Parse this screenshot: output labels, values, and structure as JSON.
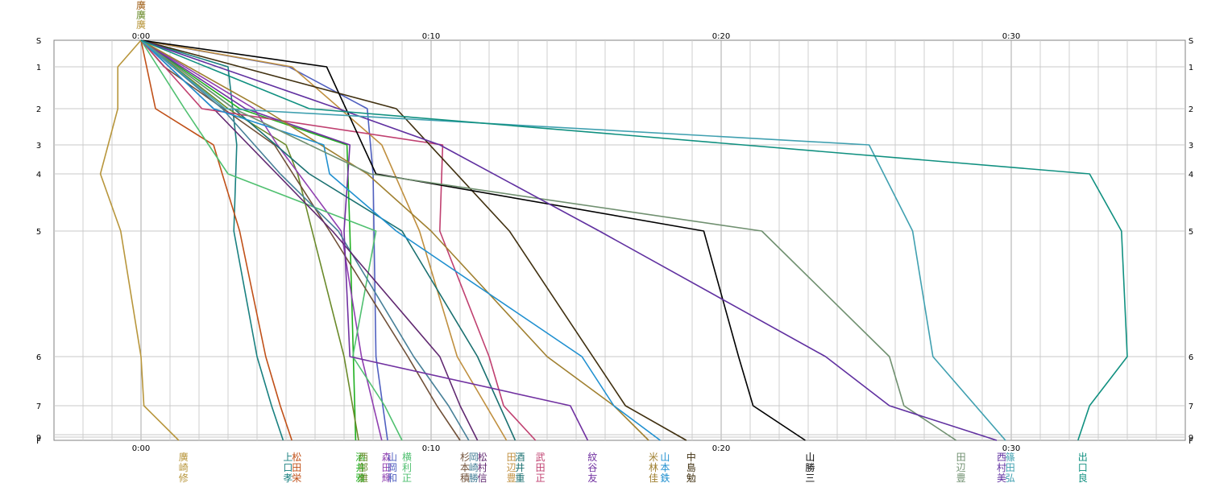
{
  "chart_data": {
    "type": "line",
    "x_axis": {
      "ticks": [
        "0:00",
        "0:10",
        "0:20",
        "0:30"
      ],
      "tick_minutes": [
        0,
        10,
        20,
        30
      ],
      "range_minutes": [
        -3.5,
        35.5
      ],
      "minor_grid_minutes": 1
    },
    "y_axis": {
      "ticks": [
        "S",
        "1",
        "2",
        "3",
        "4",
        "5",
        "6",
        "7",
        "8",
        "9",
        "F"
      ],
      "scale": "variable",
      "range": [
        "S",
        "F"
      ]
    },
    "grid": true,
    "top_names": [
      "廣",
      "廣",
      "廣"
    ],
    "series": [
      {
        "id": "s1",
        "name_parts": [
          "廣",
          "崎",
          "修"
        ],
        "color": "#b8963c",
        "finish_minutes": 1.3,
        "points": [
          [
            0,
            "S"
          ],
          [
            -0.8,
            "1"
          ],
          [
            -0.8,
            "2"
          ],
          [
            -1.4,
            "4"
          ],
          [
            -0.7,
            "5"
          ],
          [
            0,
            "6"
          ],
          [
            0.1,
            "7"
          ],
          [
            1.3,
            "F"
          ]
        ]
      },
      {
        "id": "s2",
        "name_parts": [
          "上",
          "口",
          "孝"
        ],
        "color": "#1a8080",
        "finish_minutes": 4.9,
        "points": [
          [
            0,
            "S"
          ],
          [
            3,
            "1"
          ],
          [
            3.3,
            "3"
          ],
          [
            3.2,
            "5"
          ],
          [
            4,
            "6"
          ],
          [
            4.5,
            "7"
          ],
          [
            4.9,
            "F"
          ]
        ]
      },
      {
        "id": "s3",
        "name_parts": [
          "松",
          "田",
          "栄"
        ],
        "color": "#c05018",
        "finish_minutes": 5.2,
        "points": [
          [
            0,
            "S"
          ],
          [
            0.5,
            "2"
          ],
          [
            2.5,
            "3"
          ],
          [
            2.8,
            "4"
          ],
          [
            3.4,
            "5"
          ],
          [
            4.3,
            "6"
          ],
          [
            4.8,
            "7"
          ],
          [
            5.2,
            "F"
          ]
        ]
      },
      {
        "id": "s4",
        "name_parts": [
          "酒",
          "井",
          "雅"
        ],
        "color": "#20b020",
        "finish_minutes": 7.4,
        "points": [
          [
            0,
            "S"
          ],
          [
            3.4,
            "2"
          ],
          [
            7.1,
            "3"
          ],
          [
            7.2,
            "5"
          ],
          [
            7.4,
            "F"
          ]
        ]
      },
      {
        "id": "s5",
        "name_parts": [
          "西",
          "部",
          "雅"
        ],
        "color": "#6a8a2a",
        "finish_minutes": 7.5,
        "points": [
          [
            0,
            "S"
          ],
          [
            3.0,
            "2"
          ],
          [
            5.0,
            "3"
          ],
          [
            5.4,
            "4"
          ],
          [
            7.0,
            "6"
          ],
          [
            7.5,
            "F"
          ]
        ]
      },
      {
        "id": "s6",
        "name_parts": [
          "森",
          "田",
          "輝"
        ],
        "color": "#9040b0",
        "finish_minutes": 8.3,
        "points": [
          [
            0,
            "S"
          ],
          [
            3.9,
            "2"
          ],
          [
            4.7,
            "3"
          ],
          [
            6.9,
            "5"
          ],
          [
            7.6,
            "6"
          ],
          [
            8.3,
            "F"
          ]
        ]
      },
      {
        "id": "s7",
        "name_parts": [
          "山",
          "岡",
          "和"
        ],
        "color": "#5060c0",
        "finish_minutes": 8.5,
        "points": [
          [
            0,
            "S"
          ],
          [
            5.1,
            "1"
          ],
          [
            7.8,
            "2"
          ],
          [
            8.0,
            "4"
          ],
          [
            8.1,
            "6"
          ],
          [
            8.5,
            "F"
          ]
        ]
      },
      {
        "id": "s8",
        "name_parts": [
          "横",
          "利",
          "正"
        ],
        "color": "#50c070",
        "finish_minutes": 9.0,
        "points": [
          [
            0,
            "S"
          ],
          [
            1.5,
            "2"
          ],
          [
            3.0,
            "4"
          ],
          [
            8.1,
            "5"
          ],
          [
            7.3,
            "6"
          ],
          [
            8.4,
            "7"
          ],
          [
            9.0,
            "F"
          ]
        ]
      },
      {
        "id": "s9",
        "name_parts": [
          "杉",
          "本",
          "積"
        ],
        "color": "#705038",
        "finish_minutes": 11.0,
        "points": [
          [
            0,
            "S"
          ],
          [
            0.8,
            "1"
          ],
          [
            4.6,
            "3"
          ],
          [
            6.5,
            "5"
          ],
          [
            9.2,
            "6"
          ],
          [
            10.2,
            "7"
          ],
          [
            11.0,
            "F"
          ]
        ]
      },
      {
        "id": "s10",
        "name_parts": [
          "岡",
          "崎",
          "勝"
        ],
        "color": "#488098",
        "finish_minutes": 11.3,
        "points": [
          [
            0,
            "S"
          ],
          [
            2.8,
            "2"
          ],
          [
            4.8,
            "4"
          ],
          [
            6.8,
            "5"
          ],
          [
            9.4,
            "6"
          ],
          [
            10.6,
            "7"
          ],
          [
            11.3,
            "F"
          ]
        ]
      },
      {
        "id": "s11",
        "name_parts": [
          "松",
          "村",
          "信"
        ],
        "color": "#602870",
        "finish_minutes": 11.6,
        "points": [
          [
            0,
            "S"
          ],
          [
            2.5,
            "2"
          ],
          [
            6.6,
            "5"
          ],
          [
            10.3,
            "6"
          ],
          [
            11.0,
            "7"
          ],
          [
            11.6,
            "F"
          ]
        ]
      },
      {
        "id": "s12",
        "name_parts": [
          "田",
          "辺",
          "豊"
        ],
        "color": "#c09040",
        "finish_minutes": 12.6,
        "points": [
          [
            0,
            "S"
          ],
          [
            5.2,
            "1"
          ],
          [
            8.3,
            "3"
          ],
          [
            9.6,
            "5"
          ],
          [
            10.9,
            "6"
          ],
          [
            12.6,
            "F"
          ]
        ]
      },
      {
        "id": "s13",
        "name_parts": [
          "酒",
          "井",
          "重"
        ],
        "color": "#1a7070",
        "finish_minutes": 12.9,
        "points": [
          [
            0,
            "S"
          ],
          [
            3.2,
            "2"
          ],
          [
            5.8,
            "4"
          ],
          [
            9.0,
            "5"
          ],
          [
            11.6,
            "6"
          ],
          [
            12.9,
            "F"
          ]
        ]
      },
      {
        "id": "s14",
        "name_parts": [
          "武",
          "田",
          "正"
        ],
        "color": "#c04070",
        "finish_minutes": 13.6,
        "points": [
          [
            0,
            "S"
          ],
          [
            2.1,
            "2"
          ],
          [
            10.4,
            "3"
          ],
          [
            10.3,
            "5"
          ],
          [
            12.0,
            "6"
          ],
          [
            12.5,
            "7"
          ],
          [
            13.6,
            "F"
          ]
        ]
      },
      {
        "id": "s15",
        "name_parts": [
          "紋",
          "谷",
          "友"
        ],
        "color": "#7030a0",
        "finish_minutes": 15.4,
        "points": [
          [
            0,
            "S"
          ],
          [
            3.6,
            "2"
          ],
          [
            7.2,
            "3"
          ],
          [
            7.0,
            "5"
          ],
          [
            7.2,
            "6"
          ],
          [
            14.8,
            "7"
          ],
          [
            15.4,
            "F"
          ]
        ]
      },
      {
        "id": "s16",
        "name_parts": [
          "米",
          "林",
          "佳"
        ],
        "color": "#a08030",
        "finish_minutes": 17.5,
        "points": [
          [
            0,
            "S"
          ],
          [
            4.2,
            "2"
          ],
          [
            7.8,
            "4"
          ],
          [
            10.0,
            "5"
          ],
          [
            14.0,
            "6"
          ],
          [
            16.3,
            "7"
          ],
          [
            17.5,
            "F"
          ]
        ]
      },
      {
        "id": "s17",
        "name_parts": [
          "山",
          "本",
          "鉄"
        ],
        "color": "#2090d0",
        "finish_minutes": 17.9,
        "points": [
          [
            0,
            "S"
          ],
          [
            2.5,
            "2"
          ],
          [
            6.3,
            "3"
          ],
          [
            6.5,
            "4"
          ],
          [
            8.8,
            "5"
          ],
          [
            15.2,
            "6"
          ],
          [
            16.3,
            "7"
          ],
          [
            17.9,
            "F"
          ]
        ]
      },
      {
        "id": "s18",
        "name_parts": [
          "中",
          "島",
          "勉"
        ],
        "color": "#403010",
        "finish_minutes": 18.8,
        "points": [
          [
            0,
            "S"
          ],
          [
            8.8,
            "2"
          ],
          [
            12.7,
            "5"
          ],
          [
            16.7,
            "7"
          ],
          [
            18.8,
            "F"
          ]
        ]
      },
      {
        "id": "s19",
        "name_parts": [
          "山",
          "勝",
          "三"
        ],
        "color": "#000000",
        "finish_minutes": 22.9,
        "points": [
          [
            0,
            "S"
          ],
          [
            6.4,
            "1"
          ],
          [
            8.1,
            "4"
          ],
          [
            19.4,
            "5"
          ],
          [
            20.6,
            "6"
          ],
          [
            21.1,
            "7"
          ],
          [
            22.9,
            "F"
          ]
        ]
      },
      {
        "id": "s20",
        "name_parts": [
          "田",
          "辺",
          "豊"
        ],
        "color": "#709070",
        "finish_minutes": 28.1,
        "points": [
          [
            0,
            "S"
          ],
          [
            3.2,
            "2"
          ],
          [
            7.9,
            "4"
          ],
          [
            21.4,
            "5"
          ],
          [
            25.8,
            "6"
          ],
          [
            26.3,
            "7"
          ],
          [
            28.1,
            "F"
          ]
        ]
      },
      {
        "id": "s21",
        "name_parts": [
          "西",
          "村",
          "美"
        ],
        "color": "#6030a0",
        "finish_minutes": 29.5,
        "points": [
          [
            0,
            "S"
          ],
          [
            6.8,
            "2"
          ],
          [
            10.3,
            "3"
          ],
          [
            15.8,
            "5"
          ],
          [
            23.6,
            "6"
          ],
          [
            25.8,
            "7"
          ],
          [
            29.5,
            "F"
          ]
        ]
      },
      {
        "id": "s22",
        "name_parts": [
          "篠",
          "田",
          "弘"
        ],
        "color": "#40a0b0",
        "finish_minutes": 29.8,
        "points": [
          [
            0,
            "S"
          ],
          [
            2.9,
            "2"
          ],
          [
            25.1,
            "3"
          ],
          [
            26.6,
            "5"
          ],
          [
            27.3,
            "6"
          ],
          [
            29.8,
            "F"
          ]
        ]
      },
      {
        "id": "s23",
        "name_parts": [
          "出",
          "口",
          "良"
        ],
        "color": "#109080",
        "finish_minutes": 32.3,
        "points": [
          [
            0,
            "S"
          ],
          [
            5.8,
            "2"
          ],
          [
            32.7,
            "4"
          ],
          [
            33.8,
            "5"
          ],
          [
            34.0,
            "6"
          ],
          [
            32.7,
            "7"
          ],
          [
            32.3,
            "F"
          ]
        ]
      }
    ]
  }
}
